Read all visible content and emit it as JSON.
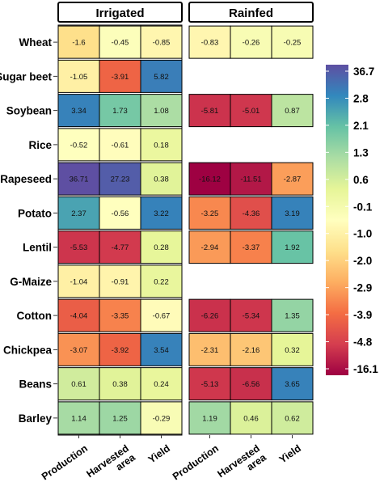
{
  "chart_data": {
    "type": "heatmap",
    "title": "",
    "panels": [
      "Irrigated",
      "Rainfed"
    ],
    "rows": [
      "Wheat",
      "Sugar beet",
      "Soybean",
      "Rice",
      "Rapeseed",
      "Potato",
      "Lentil",
      "G-Maize",
      "Cotton",
      "Chickpea",
      "Beans",
      "Barley"
    ],
    "columns": [
      [
        "Production"
      ],
      [
        "Harvested",
        "area"
      ],
      [
        "Yield"
      ]
    ],
    "values": {
      "Irrigated": [
        [
          -1.6,
          -0.45,
          -0.85
        ],
        [
          -1.05,
          -3.91,
          5.82
        ],
        [
          3.34,
          1.73,
          1.08
        ],
        [
          -0.52,
          -0.61,
          0.18
        ],
        [
          36.71,
          27.23,
          0.38
        ],
        [
          2.37,
          -0.56,
          3.22
        ],
        [
          -5.53,
          -4.77,
          0.28
        ],
        [
          -1.04,
          -0.91,
          0.22
        ],
        [
          -4.04,
          -3.35,
          -0.67
        ],
        [
          -3.07,
          -3.92,
          3.54
        ],
        [
          0.61,
          0.38,
          0.24
        ],
        [
          1.14,
          1.25,
          -0.29
        ]
      ],
      "Rainfed": [
        [
          -0.83,
          -0.26,
          -0.25
        ],
        null,
        [
          -5.81,
          -5.01,
          0.87
        ],
        null,
        [
          -16.12,
          -11.51,
          -2.87
        ],
        [
          -3.25,
          -4.36,
          3.19
        ],
        [
          -2.94,
          -3.37,
          1.92
        ],
        null,
        [
          -6.26,
          -5.34,
          1.35
        ],
        [
          -2.31,
          -2.16,
          0.32
        ],
        [
          -5.13,
          -6.56,
          3.65
        ],
        [
          1.19,
          0.46,
          0.62
        ]
      ]
    },
    "legend": {
      "labels": [
        "36.7",
        "2.8",
        "2.1",
        "1.3",
        "0.6",
        "-0.1",
        "-1.0",
        "-2.0",
        "-2.9",
        "-3.9",
        "-4.8",
        "-16.1"
      ],
      "colors": [
        "#5e4fa2",
        "#3288bd",
        "#66c2a5",
        "#abdda4",
        "#e6f598",
        "#ffffbf",
        "#fee08b",
        "#fdae61",
        "#f46d43",
        "#d53e4f",
        "#9e0142"
      ]
    }
  }
}
